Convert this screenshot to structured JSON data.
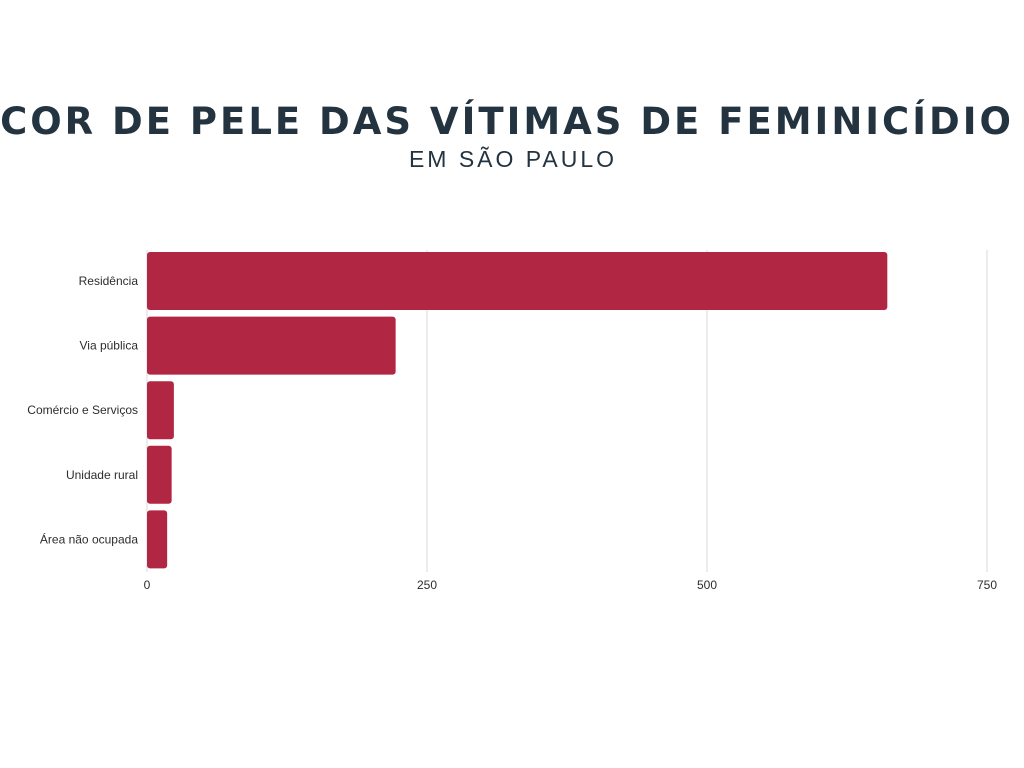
{
  "chart_data": {
    "type": "bar",
    "orientation": "horizontal",
    "title": "COR DE PELE DAS VÍTIMAS DE FEMINICÍDIO",
    "subtitle": "EM SÃO PAULO",
    "categories": [
      "Residência",
      "Via pública",
      "Comércio e Serviços",
      "Unidade rural",
      "Área não ocupada"
    ],
    "values": [
      661,
      222,
      24,
      22,
      18
    ],
    "xlim": [
      0,
      750
    ],
    "xticks": [
      0,
      250,
      500,
      750
    ],
    "xtick_labels": [
      "0",
      "250",
      "500",
      "750"
    ],
    "grid": "vertical",
    "legend": "none",
    "bar_color": "#b12643",
    "grid_color": "#d9d9d9"
  }
}
